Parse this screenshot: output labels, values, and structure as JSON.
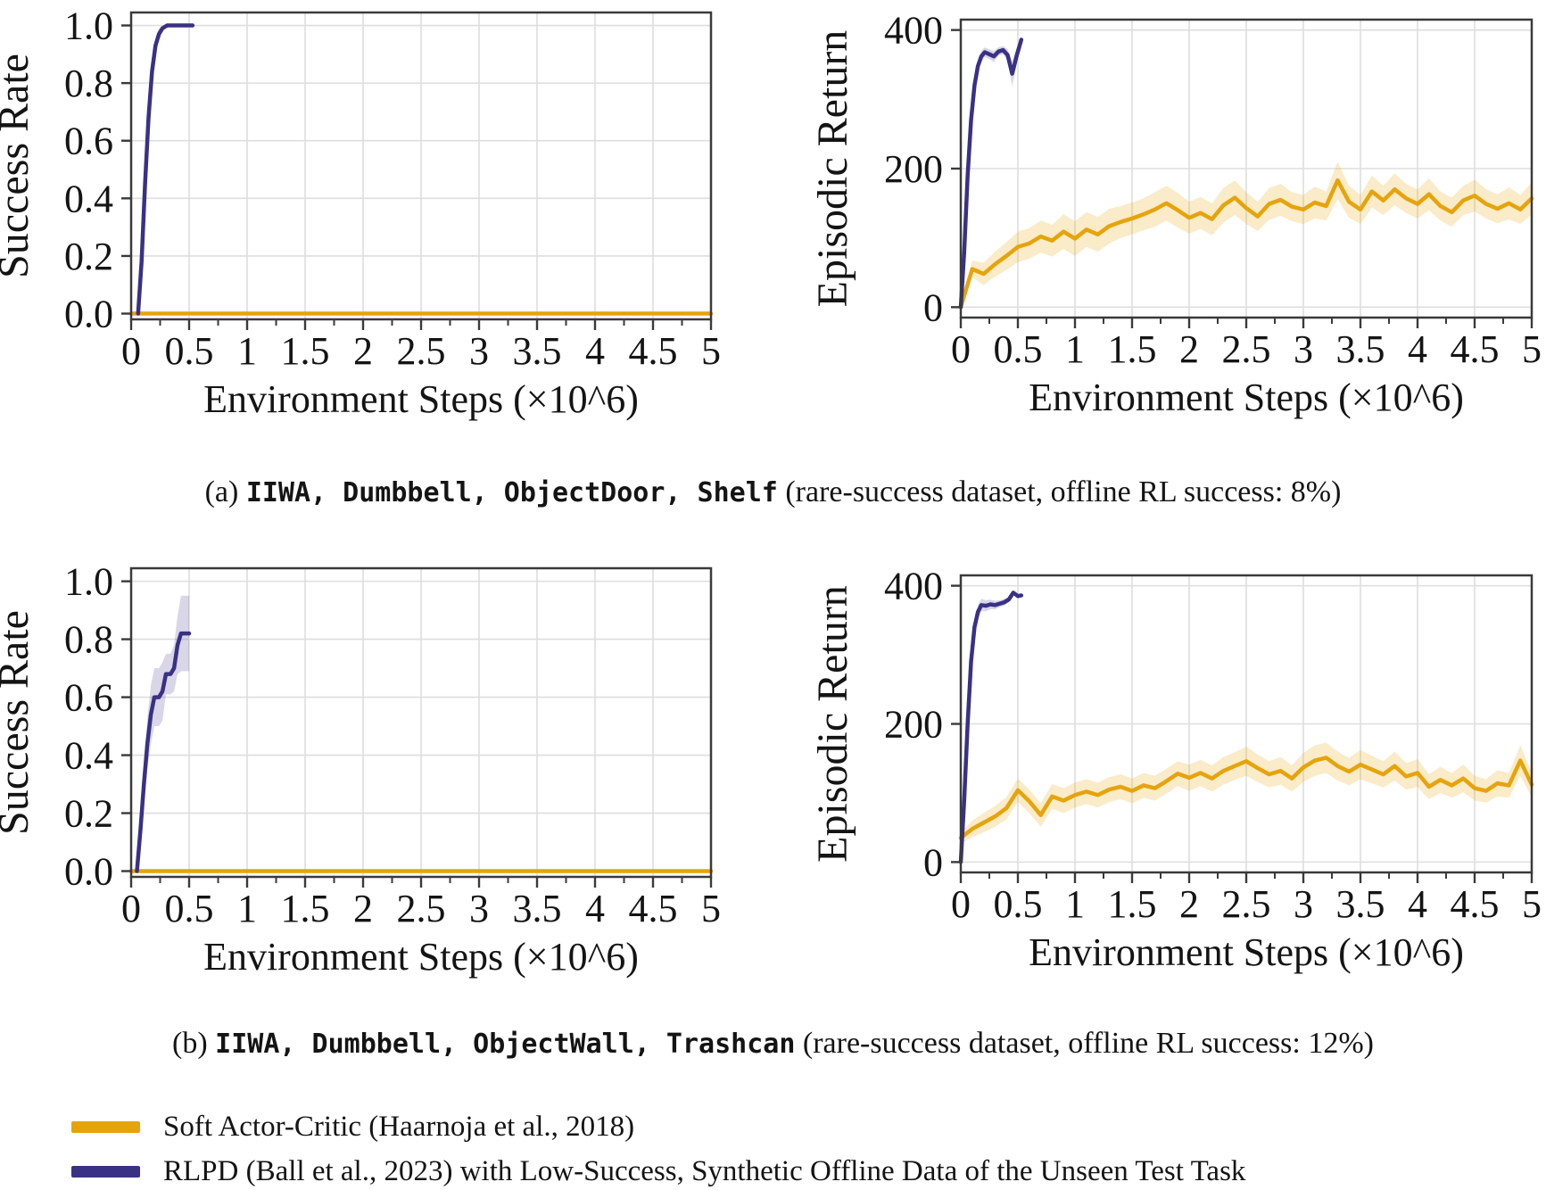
{
  "page": {
    "background": "#ffffff"
  },
  "colors": {
    "sac": "#E6A40B",
    "rlpd": "#3A3185",
    "sac_band": "rgba(230,164,11,0.22)",
    "rlpd_band": "rgba(58,50,133,0.20)",
    "grid": "#DEDEDE",
    "spine": "#3A3A3A",
    "text": "#141414"
  },
  "captions": [
    {
      "parts": [
        {
          "text": "(a) ",
          "mono": false
        },
        {
          "text": "IIWA, Dumbbell, ObjectDoor, Shelf",
          "mono": true
        },
        {
          "text": " (rare-success dataset, offline RL success: 8%)",
          "mono": false
        }
      ]
    },
    {
      "parts": [
        {
          "text": "(b) ",
          "mono": false
        },
        {
          "text": "IIWA, Dumbbell, ObjectWall, Trashcan",
          "mono": true
        },
        {
          "text": " (rare-success dataset, offline RL success: 12%)",
          "mono": false
        }
      ]
    }
  ],
  "legend": {
    "position": "bottom-left",
    "items": [
      {
        "label": "Soft Actor-Critic (Haarnoja et al., 2018)",
        "color": "#E6A40B",
        "series": "sac"
      },
      {
        "label": "RLPD (Ball et al., 2023) with Low-Success, Synthetic Offline Data of the Unseen Test Task",
        "color": "#3A3185",
        "series": "rlpd"
      }
    ]
  },
  "chart_data": [
    {
      "type": "line",
      "panel": "a-success-rate",
      "xlabel": "Environment Steps (×10^6)",
      "ylabel": "Success Rate",
      "xlim": [
        0,
        5
      ],
      "ylim": [
        -0.02,
        1.045
      ],
      "xticks": [
        0,
        0.5,
        1,
        1.5,
        2,
        2.5,
        3,
        3.5,
        4,
        4.5,
        5
      ],
      "xtick_labels": [
        "0",
        "0.5",
        "1",
        "1.5",
        "2",
        "2.5",
        "3",
        "3.5",
        "4",
        "4.5",
        "5"
      ],
      "yticks": [
        0,
        0.2,
        0.4,
        0.6,
        0.8,
        1.0
      ],
      "ytick_labels": [
        "0.0",
        "0.2",
        "0.4",
        "0.6",
        "0.8",
        "1.0"
      ],
      "minor_xtick_step": 0.25,
      "grid": true,
      "series": [
        {
          "name": "sac",
          "x_start": 0,
          "x_step": 5,
          "y": [
            0,
            0
          ],
          "band": [
            0,
            0
          ]
        },
        {
          "name": "rlpd",
          "x": [
            0.06,
            0.09,
            0.12,
            0.15,
            0.18,
            0.21,
            0.24,
            0.27,
            0.31,
            0.36,
            0.42,
            0.48,
            0.53
          ],
          "y": [
            0,
            0.18,
            0.45,
            0.68,
            0.84,
            0.93,
            0.97,
            0.99,
            1.0,
            1.0,
            1.0,
            1.0,
            1.0
          ],
          "band": [
            0,
            0.05,
            0.07,
            0.07,
            0.05,
            0.03,
            0.02,
            0.01,
            0,
            0,
            0,
            0,
            0
          ]
        }
      ]
    },
    {
      "type": "line",
      "panel": "a-episodic-return",
      "xlabel": "Environment Steps (×10^6)",
      "ylabel": "Episodic Return",
      "xlim": [
        0,
        5
      ],
      "ylim": [
        -15,
        415
      ],
      "xticks": [
        0,
        0.5,
        1,
        1.5,
        2,
        2.5,
        3,
        3.5,
        4,
        4.5,
        5
      ],
      "xtick_labels": [
        "0",
        "0.5",
        "1",
        "1.5",
        "2",
        "2.5",
        "3",
        "3.5",
        "4",
        "4.5",
        "5"
      ],
      "yticks": [
        0,
        200,
        400
      ],
      "ytick_labels": [
        "0",
        "200",
        "400"
      ],
      "minor_xtick_step": 0.25,
      "grid": true,
      "series": [
        {
          "name": "sac",
          "x_start": 0,
          "x_step": 0.1,
          "y": [
            0,
            55,
            48,
            62,
            74,
            87,
            92,
            102,
            96,
            109,
            99,
            112,
            105,
            117,
            123,
            128,
            134,
            141,
            150,
            140,
            129,
            136,
            127,
            147,
            158,
            143,
            131,
            149,
            155,
            145,
            141,
            151,
            146,
            183,
            152,
            141,
            167,
            154,
            170,
            157,
            149,
            163,
            146,
            137,
            154,
            161,
            149,
            142,
            150,
            141,
            157
          ],
          "band": [
            3,
            12,
            16,
            18,
            20,
            22,
            22,
            23,
            23,
            25,
            25,
            25,
            25,
            25,
            23,
            23,
            23,
            25,
            25,
            25,
            23,
            23,
            23,
            25,
            25,
            23,
            21,
            23,
            23,
            21,
            21,
            23,
            21,
            27,
            23,
            21,
            23,
            21,
            23,
            21,
            21,
            23,
            21,
            21,
            21,
            23,
            21,
            21,
            23,
            21,
            23
          ]
        },
        {
          "name": "rlpd",
          "x": [
            0,
            0.03,
            0.06,
            0.09,
            0.12,
            0.15,
            0.18,
            0.21,
            0.25,
            0.29,
            0.33,
            0.37,
            0.41,
            0.45,
            0.49,
            0.53
          ],
          "y": [
            0,
            80,
            190,
            270,
            320,
            348,
            362,
            368,
            365,
            362,
            369,
            371,
            364,
            337,
            363,
            386
          ],
          "band": [
            0,
            8,
            12,
            12,
            10,
            9,
            8,
            7,
            7,
            8,
            6,
            6,
            8,
            18,
            12,
            4
          ]
        }
      ]
    },
    {
      "type": "line",
      "panel": "b-success-rate",
      "xlabel": "Environment Steps (×10^6)",
      "ylabel": "Success Rate",
      "xlim": [
        0,
        5
      ],
      "ylim": [
        -0.02,
        1.045
      ],
      "xticks": [
        0,
        0.5,
        1,
        1.5,
        2,
        2.5,
        3,
        3.5,
        4,
        4.5,
        5
      ],
      "xtick_labels": [
        "0",
        "0.5",
        "1",
        "1.5",
        "2",
        "2.5",
        "3",
        "3.5",
        "4",
        "4.5",
        "5"
      ],
      "yticks": [
        0,
        0.2,
        0.4,
        0.6,
        0.8,
        1.0
      ],
      "ytick_labels": [
        "0.0",
        "0.2",
        "0.4",
        "0.6",
        "0.8",
        "1.0"
      ],
      "minor_xtick_step": 0.25,
      "grid": true,
      "series": [
        {
          "name": "sac",
          "x_start": 0,
          "x_step": 5,
          "y": [
            0,
            0
          ],
          "band": [
            0,
            0
          ]
        },
        {
          "name": "rlpd",
          "x": [
            0.05,
            0.08,
            0.11,
            0.14,
            0.17,
            0.2,
            0.24,
            0.27,
            0.3,
            0.34,
            0.37,
            0.4,
            0.43,
            0.5
          ],
          "y": [
            0,
            0.14,
            0.3,
            0.44,
            0.54,
            0.6,
            0.6,
            0.62,
            0.68,
            0.68,
            0.7,
            0.78,
            0.82,
            0.82
          ],
          "band": [
            0,
            0.04,
            0.07,
            0.09,
            0.1,
            0.1,
            0.1,
            0.1,
            0.07,
            0.07,
            0.08,
            0.1,
            0.13,
            0.13
          ]
        }
      ]
    },
    {
      "type": "line",
      "panel": "b-episodic-return",
      "xlabel": "Environment Steps (×10^6)",
      "ylabel": "Episodic Return",
      "xlim": [
        0,
        5
      ],
      "ylim": [
        -15,
        415
      ],
      "xticks": [
        0,
        0.5,
        1,
        1.5,
        2,
        2.5,
        3,
        3.5,
        4,
        4.5,
        5
      ],
      "xtick_labels": [
        "0",
        "0.5",
        "1",
        "1.5",
        "2",
        "2.5",
        "3",
        "3.5",
        "4",
        "4.5",
        "5"
      ],
      "yticks": [
        0,
        200,
        400
      ],
      "ytick_labels": [
        "0",
        "200",
        "400"
      ],
      "minor_xtick_step": 0.25,
      "grid": true,
      "series": [
        {
          "name": "sac",
          "x_start": 0,
          "x_step": 0.1,
          "y": [
            35,
            48,
            57,
            66,
            78,
            104,
            88,
            68,
            95,
            89,
            97,
            102,
            97,
            105,
            109,
            103,
            111,
            107,
            117,
            128,
            122,
            129,
            121,
            132,
            139,
            146,
            136,
            127,
            132,
            121,
            137,
            147,
            151,
            139,
            131,
            141,
            134,
            127,
            139,
            124,
            129,
            109,
            119,
            111,
            121,
            107,
            103,
            114,
            111,
            147,
            112
          ],
          "band": [
            8,
            12,
            14,
            15,
            16,
            17,
            17,
            17,
            18,
            18,
            18,
            18,
            18,
            18,
            18,
            18,
            18,
            18,
            18,
            18,
            19,
            19,
            19,
            20,
            20,
            21,
            20,
            19,
            20,
            19,
            21,
            22,
            22,
            21,
            20,
            21,
            20,
            19,
            21,
            19,
            20,
            18,
            19,
            18,
            20,
            18,
            17,
            19,
            18,
            22,
            18
          ]
        },
        {
          "name": "rlpd",
          "x": [
            0,
            0.03,
            0.06,
            0.09,
            0.12,
            0.15,
            0.18,
            0.22,
            0.26,
            0.3,
            0.34,
            0.38,
            0.42,
            0.46,
            0.5,
            0.53
          ],
          "y": [
            0,
            90,
            200,
            290,
            340,
            362,
            372,
            371,
            373,
            372,
            374,
            376,
            380,
            390,
            385,
            386
          ],
          "band": [
            0,
            10,
            14,
            12,
            10,
            10,
            9,
            8,
            7,
            6,
            5,
            5,
            4,
            3,
            3,
            3
          ]
        }
      ]
    }
  ]
}
